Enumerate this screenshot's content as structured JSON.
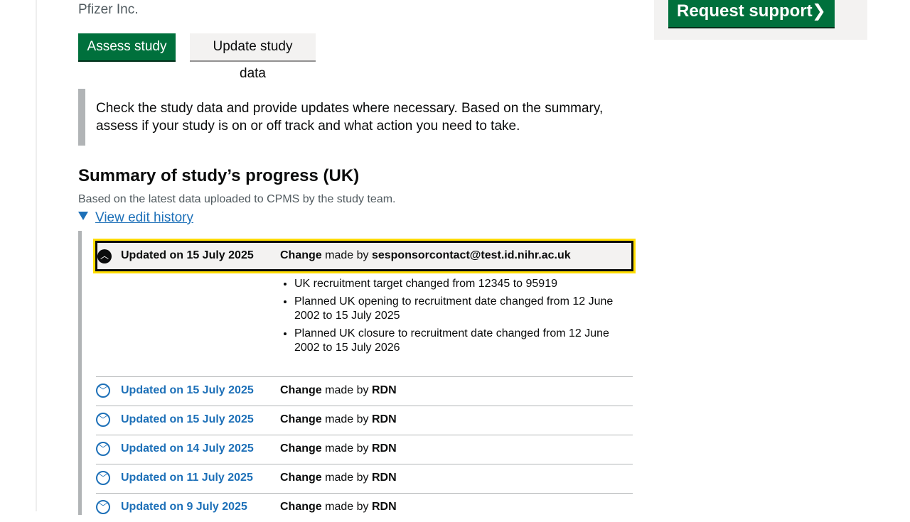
{
  "sponsor": "Pfizer Inc.",
  "buttons": {
    "assess": "Assess study",
    "update": "Update study data"
  },
  "inset_text": "Check the study data and provide updates where necessary. Based on the summary, assess if your study is on or off track and what action you need to take.",
  "side": {
    "support_label": "Request support",
    "support_chevron": "❯"
  },
  "summary": {
    "heading": "Summary of study’s progress (UK)",
    "hint": "Based on the latest data uploaded to CPMS by the study team.",
    "history_link": "View edit history"
  },
  "history": {
    "open": {
      "date": "Updated on 15 July 2025",
      "change_word": "Change",
      "made_by": "made by",
      "author": "sesponsorcontact@test.id.nihr.ac.uk",
      "changes": [
        "UK recruitment target changed from 12345 to 95919",
        "Planned UK opening to recruitment date changed from 12 June 2002 to 15 July 2025",
        "Planned UK closure to recruitment date changed from 12 June 2002 to 15 July 2026"
      ]
    },
    "rows": [
      {
        "date": "Updated on 15 July 2025",
        "change_word": "Change",
        "made_by": "made by",
        "author": "RDN"
      },
      {
        "date": "Updated on 15 July 2025",
        "change_word": "Change",
        "made_by": "made by",
        "author": "RDN"
      },
      {
        "date": "Updated on 14 July 2025",
        "change_word": "Change",
        "made_by": "made by",
        "author": "RDN"
      },
      {
        "date": "Updated on 11 July 2025",
        "change_word": "Change",
        "made_by": "made by",
        "author": "RDN"
      },
      {
        "date": "Updated on 9 July 2025",
        "change_word": "Change",
        "made_by": "made by",
        "author": "RDN"
      }
    ]
  },
  "icons": {
    "collapse": "chevron-up-icon",
    "expand": "chevron-down-icon"
  },
  "colors": {
    "primary": "#00703c",
    "link": "#1d70b8",
    "focus": "#ffdd00"
  }
}
